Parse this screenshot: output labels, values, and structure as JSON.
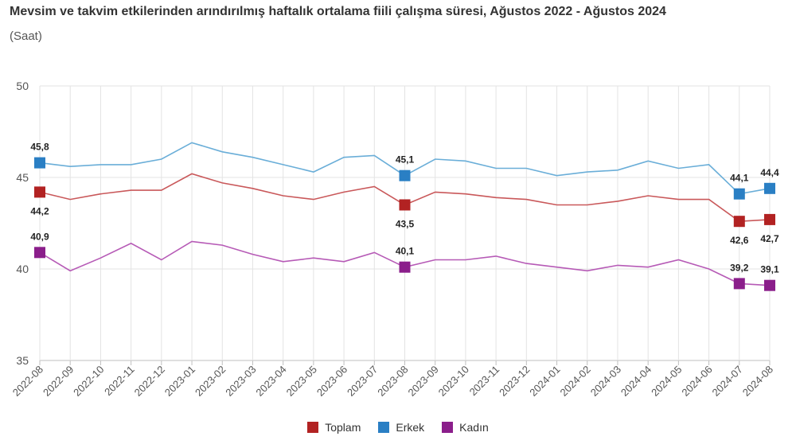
{
  "header": {
    "title": "Mevsim ve takvim etkilerinden arındırılmış haftalık ortalama fiili çalışma süresi, Ağustos 2022 - Ağustos 2024",
    "subtitle": "(Saat)"
  },
  "chart_data": {
    "type": "line",
    "title": "Mevsim ve takvim etkilerinden arındırılmış haftalık ortalama fiili çalışma süresi, Ağustos 2022 - Ağustos 2024",
    "ylabel": "(Saat)",
    "xlabel": "",
    "ylim": [
      35,
      50
    ],
    "yticks": [
      35,
      40,
      45,
      50
    ],
    "grid": true,
    "legend_position": "bottom-center",
    "categories": [
      "2022-08",
      "2022-09",
      "2022-10",
      "2022-11",
      "2022-12",
      "2023-01",
      "2023-02",
      "2023-03",
      "2023-04",
      "2023-05",
      "2023-06",
      "2023-07",
      "2023-08",
      "2023-09",
      "2023-10",
      "2023-11",
      "2023-12",
      "2024-01",
      "2024-02",
      "2024-03",
      "2024-04",
      "2024-05",
      "2024-06",
      "2024-07",
      "2024-08"
    ],
    "series": [
      {
        "name": "Toplam",
        "color": "#b22222",
        "line_color": "#c9585a",
        "values": [
          44.2,
          43.8,
          44.1,
          44.3,
          44.3,
          45.2,
          44.7,
          44.4,
          44.0,
          43.8,
          44.2,
          44.5,
          43.5,
          44.2,
          44.1,
          43.9,
          43.8,
          43.5,
          43.5,
          43.7,
          44.0,
          43.8,
          43.8,
          42.6,
          42.7
        ],
        "labels": [
          {
            "i": 0,
            "text": "44,2",
            "pos": "below"
          },
          {
            "i": 12,
            "text": "43,5",
            "pos": "below"
          },
          {
            "i": 23,
            "text": "42,6",
            "pos": "below"
          },
          {
            "i": 24,
            "text": "42,7",
            "pos": "below"
          }
        ]
      },
      {
        "name": "Erkek",
        "color": "#2a7fc4",
        "line_color": "#6aaed8",
        "values": [
          45.8,
          45.6,
          45.7,
          45.7,
          46.0,
          46.9,
          46.4,
          46.1,
          45.7,
          45.3,
          46.1,
          46.2,
          45.1,
          46.0,
          45.9,
          45.5,
          45.5,
          45.1,
          45.3,
          45.4,
          45.9,
          45.5,
          45.7,
          44.1,
          44.4
        ],
        "labels": [
          {
            "i": 0,
            "text": "45,8",
            "pos": "above"
          },
          {
            "i": 12,
            "text": "45,1",
            "pos": "above"
          },
          {
            "i": 23,
            "text": "44,1",
            "pos": "above"
          },
          {
            "i": 24,
            "text": "44,4",
            "pos": "above"
          }
        ]
      },
      {
        "name": "Kadın",
        "color": "#8b1e8b",
        "line_color": "#b65ab6",
        "values": [
          40.9,
          39.9,
          40.6,
          41.4,
          40.5,
          41.5,
          41.3,
          40.8,
          40.4,
          40.6,
          40.4,
          40.9,
          40.1,
          40.5,
          40.5,
          40.7,
          40.3,
          40.1,
          39.9,
          40.2,
          40.1,
          40.5,
          40.0,
          39.2,
          39.1
        ],
        "labels": [
          {
            "i": 0,
            "text": "40,9",
            "pos": "above"
          },
          {
            "i": 12,
            "text": "40,1",
            "pos": "above"
          },
          {
            "i": 23,
            "text": "39,2",
            "pos": "above"
          },
          {
            "i": 24,
            "text": "39,1",
            "pos": "above"
          }
        ]
      }
    ]
  }
}
